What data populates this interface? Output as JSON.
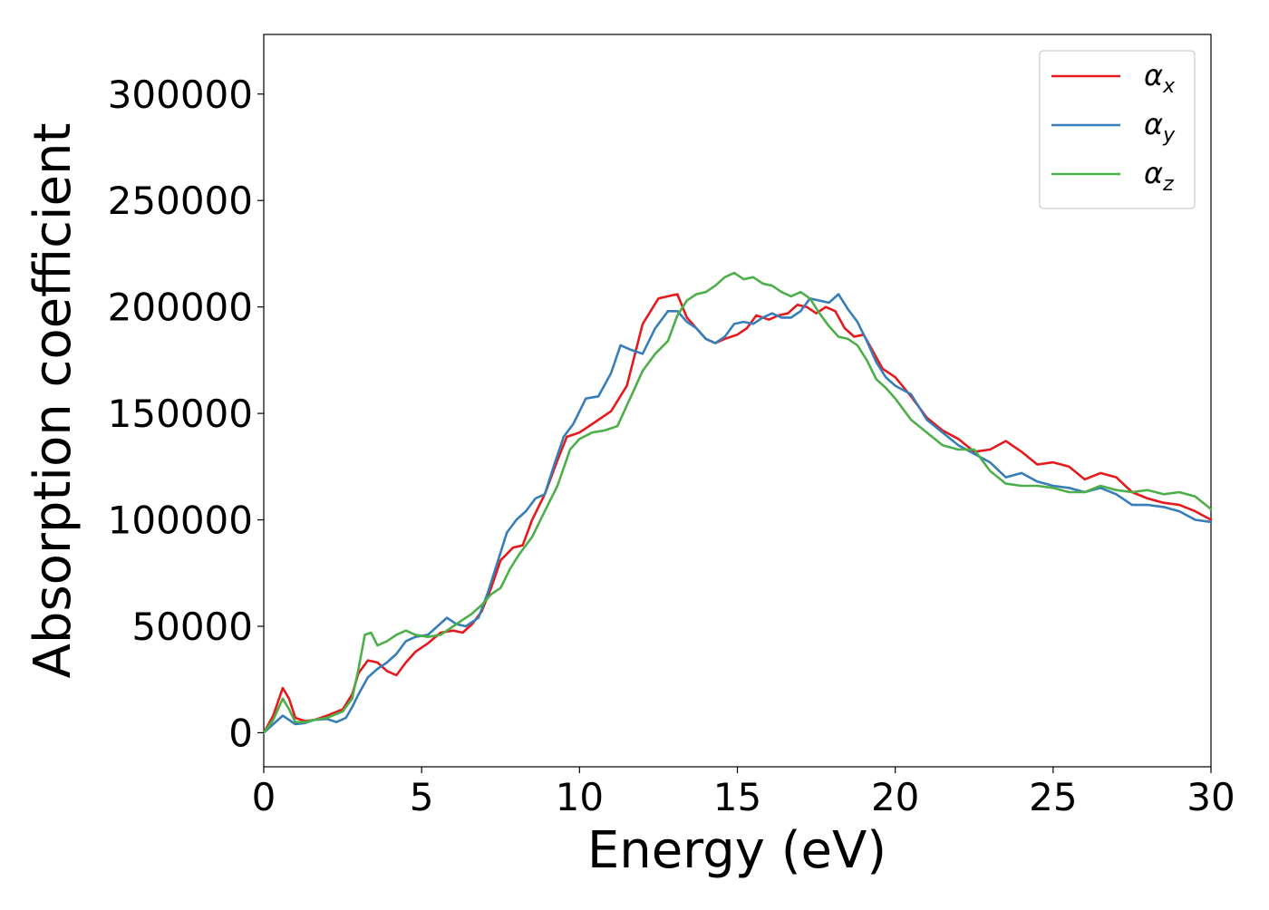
{
  "chart_data": {
    "type": "line",
    "title": "",
    "xlabel": "Energy (eV)",
    "ylabel": "Absorption coefficient",
    "xlim": [
      0,
      30
    ],
    "ylim": [
      -16000,
      328000
    ],
    "xticks": [
      0,
      5,
      10,
      15,
      20,
      25,
      30
    ],
    "yticks": [
      0,
      50000,
      100000,
      150000,
      200000,
      250000,
      300000
    ],
    "grid": false,
    "legend_position": "top-right",
    "series": [
      {
        "name": "α_x",
        "label_main": "α",
        "label_sub": "x",
        "color": "#e41a1c",
        "x": [
          0,
          0.3,
          0.6,
          0.8,
          1.0,
          1.3,
          1.6,
          2.0,
          2.5,
          2.8,
          3.0,
          3.3,
          3.6,
          3.9,
          4.2,
          4.5,
          4.8,
          5.2,
          5.6,
          6.0,
          6.3,
          6.6,
          6.9,
          7.2,
          7.5,
          7.9,
          8.2,
          8.5,
          8.9,
          9.3,
          9.6,
          10.0,
          10.5,
          11.0,
          11.5,
          12.0,
          12.5,
          12.8,
          13.1,
          13.4,
          13.7,
          14.0,
          14.3,
          14.6,
          15.0,
          15.3,
          15.6,
          16.0,
          16.3,
          16.6,
          16.9,
          17.2,
          17.5,
          17.8,
          18.1,
          18.4,
          18.7,
          19.0,
          19.3,
          19.6,
          20.0,
          20.5,
          21.0,
          21.5,
          22.0,
          22.5,
          23.0,
          23.5,
          24.0,
          24.5,
          25.0,
          25.5,
          26.0,
          26.5,
          27.0,
          27.5,
          28.0,
          28.5,
          29.0,
          29.5,
          30.0
        ],
        "values": [
          0,
          8000,
          21000,
          16000,
          7000,
          5500,
          6000,
          8000,
          11000,
          18000,
          28000,
          34000,
          33000,
          29000,
          27000,
          33000,
          38000,
          42000,
          47000,
          48000,
          47000,
          51000,
          57000,
          68000,
          81000,
          87000,
          88000,
          100000,
          112000,
          128000,
          139000,
          141000,
          146000,
          151000,
          163000,
          192000,
          204000,
          205000,
          206000,
          195000,
          190000,
          185000,
          183000,
          185000,
          187000,
          190000,
          196000,
          194000,
          196000,
          197000,
          201000,
          200000,
          197000,
          200000,
          198000,
          190000,
          186000,
          187000,
          179000,
          171000,
          167000,
          158000,
          148000,
          142000,
          138000,
          132000,
          133000,
          137000,
          132000,
          126000,
          127000,
          125000,
          119000,
          122000,
          120000,
          113000,
          110000,
          108000,
          107000,
          104000,
          100000
        ]
      },
      {
        "name": "α_y",
        "label_main": "α",
        "label_sub": "y",
        "color": "#377eb8",
        "x": [
          0,
          0.3,
          0.6,
          0.8,
          1.0,
          1.3,
          1.6,
          2.0,
          2.3,
          2.6,
          2.8,
          3.0,
          3.3,
          3.6,
          3.9,
          4.2,
          4.5,
          4.8,
          5.2,
          5.5,
          5.8,
          6.1,
          6.4,
          6.8,
          7.1,
          7.4,
          7.7,
          8.0,
          8.3,
          8.6,
          8.9,
          9.2,
          9.5,
          9.8,
          10.2,
          10.6,
          11.0,
          11.3,
          11.6,
          12.0,
          12.4,
          12.8,
          13.1,
          13.4,
          13.7,
          14.0,
          14.3,
          14.6,
          14.9,
          15.2,
          15.5,
          15.8,
          16.1,
          16.4,
          16.7,
          17.0,
          17.3,
          17.6,
          17.9,
          18.2,
          18.5,
          18.8,
          19.1,
          19.4,
          19.7,
          20.0,
          20.5,
          21.0,
          21.5,
          22.0,
          22.5,
          23.0,
          23.5,
          24.0,
          24.5,
          25.0,
          25.5,
          26.0,
          26.5,
          27.0,
          27.5,
          28.0,
          28.5,
          29.0,
          29.5,
          30.0
        ],
        "values": [
          0,
          4000,
          8000,
          6000,
          4000,
          4500,
          6000,
          6500,
          5000,
          7000,
          12000,
          18000,
          26000,
          30000,
          33000,
          37000,
          43000,
          45000,
          46000,
          50000,
          54000,
          51000,
          50000,
          54000,
          66000,
          80000,
          94000,
          100000,
          104000,
          110000,
          112000,
          126000,
          139000,
          145000,
          157000,
          158000,
          169000,
          182000,
          180000,
          178000,
          190000,
          198000,
          198000,
          193000,
          190000,
          185000,
          183000,
          186000,
          192000,
          193000,
          192000,
          195000,
          197000,
          195000,
          195000,
          198000,
          204000,
          203000,
          202000,
          206000,
          199000,
          193000,
          184000,
          174000,
          167000,
          163000,
          159000,
          147000,
          141000,
          135000,
          131000,
          127000,
          120000,
          122000,
          118000,
          116000,
          115000,
          113000,
          115000,
          112000,
          107000,
          107000,
          106000,
          104000,
          100000,
          99000
        ]
      },
      {
        "name": "α_z",
        "label_main": "α",
        "label_sub": "z",
        "color": "#4daf4a",
        "x": [
          0,
          0.3,
          0.6,
          0.8,
          1.0,
          1.3,
          1.6,
          2.0,
          2.5,
          2.8,
          3.0,
          3.2,
          3.4,
          3.6,
          3.9,
          4.2,
          4.5,
          4.8,
          5.2,
          5.6,
          6.0,
          6.3,
          6.6,
          6.9,
          7.2,
          7.5,
          7.8,
          8.1,
          8.5,
          8.9,
          9.3,
          9.7,
          10.0,
          10.4,
          10.8,
          11.2,
          11.6,
          12.0,
          12.4,
          12.8,
          13.1,
          13.4,
          13.7,
          14.0,
          14.3,
          14.6,
          14.9,
          15.2,
          15.5,
          15.8,
          16.1,
          16.4,
          16.7,
          17.0,
          17.3,
          17.6,
          17.9,
          18.2,
          18.5,
          18.8,
          19.1,
          19.4,
          19.7,
          20.0,
          20.5,
          21.0,
          21.5,
          22.0,
          22.5,
          23.0,
          23.5,
          24.0,
          24.5,
          25.0,
          25.5,
          26.0,
          26.5,
          27.0,
          27.5,
          28.0,
          28.5,
          29.0,
          29.5,
          30.0
        ],
        "values": [
          0,
          6000,
          16000,
          11000,
          5000,
          5000,
          6000,
          7000,
          10000,
          16000,
          30000,
          46000,
          47000,
          41000,
          43000,
          46000,
          48000,
          46000,
          45000,
          46000,
          50000,
          53000,
          56000,
          60000,
          65000,
          68000,
          77000,
          84000,
          92000,
          104000,
          116000,
          133000,
          138000,
          141000,
          142000,
          144000,
          157000,
          170000,
          178000,
          184000,
          196000,
          203000,
          206000,
          207000,
          210000,
          214000,
          216000,
          213000,
          214000,
          211000,
          210000,
          207000,
          205000,
          207000,
          204000,
          197000,
          191000,
          186000,
          185000,
          182000,
          175000,
          166000,
          162000,
          157000,
          147000,
          141000,
          135000,
          133000,
          133000,
          123000,
          117000,
          116000,
          116000,
          115000,
          113000,
          113000,
          116000,
          114000,
          113000,
          114000,
          112000,
          113000,
          111000,
          105000
        ]
      }
    ]
  }
}
